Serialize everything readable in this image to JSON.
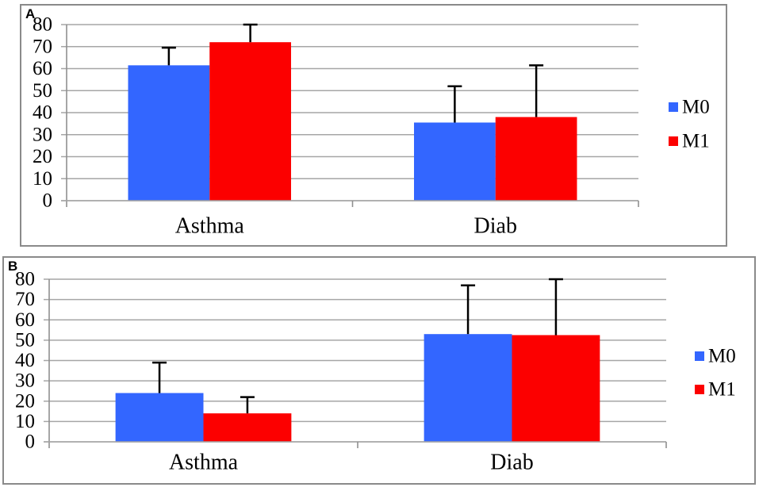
{
  "figure": {
    "panels": [
      "A",
      "B"
    ]
  },
  "colors": {
    "m0": "#3366FF",
    "m1": "#FC0000",
    "grid": "#A6A6A6",
    "axis": "#8F8F8F",
    "error_bar": "#000000",
    "panel_border": "#8A8A8A",
    "background": "#FFFFFF",
    "text": "#000000"
  },
  "chart_data": [
    {
      "type": "bar",
      "panel_label": "A",
      "title": "",
      "xlabel": "",
      "ylabel": "",
      "categories": [
        "Asthma",
        "Diab"
      ],
      "series": [
        {
          "name": "M0",
          "color_key": "m0",
          "values": [
            61.5,
            35.5
          ],
          "errors_up": [
            8,
            16.5
          ]
        },
        {
          "name": "M1",
          "color_key": "m1",
          "values": [
            72,
            38
          ],
          "errors_up": [
            8,
            23.5
          ]
        }
      ],
      "ylim": [
        0,
        80
      ],
      "ytick_step": 10,
      "grid": true,
      "legend_position": "right",
      "legend_labels": [
        "M0",
        "M1"
      ]
    },
    {
      "type": "bar",
      "panel_label": "B",
      "title": "",
      "xlabel": "",
      "ylabel": "",
      "categories": [
        "Asthma",
        "Diab"
      ],
      "series": [
        {
          "name": "M0",
          "color_key": "m0",
          "values": [
            24,
            53
          ],
          "errors_up": [
            15,
            24
          ]
        },
        {
          "name": "M1",
          "color_key": "m1",
          "values": [
            14,
            52.5
          ],
          "errors_up": [
            8,
            27.5
          ]
        }
      ],
      "ylim": [
        0,
        80
      ],
      "ytick_step": 10,
      "grid": true,
      "legend_position": "right",
      "legend_labels": [
        "M0",
        "M1"
      ]
    }
  ]
}
